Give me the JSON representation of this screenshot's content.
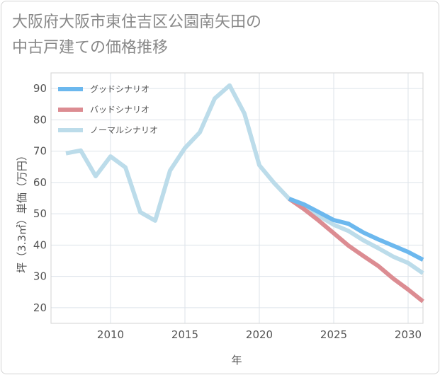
{
  "title": "大阪府大阪市東住吉区公園南矢田の\n中古戸建ての価格推移",
  "chart_data": {
    "type": "line",
    "xlabel": "年",
    "ylabel": "坪（3.3㎡）単価（万円）",
    "xlim": [
      2006,
      2031
    ],
    "ylim": [
      15,
      95
    ],
    "xticks": [
      2010,
      2015,
      2020,
      2025,
      2030
    ],
    "yticks": [
      20,
      30,
      40,
      50,
      60,
      70,
      80,
      90
    ],
    "grid": true,
    "legend_position": "top-left",
    "series": [
      {
        "name": "グッドシナリオ",
        "color": "#6cb8ee",
        "x": [
          2022,
          2023,
          2024,
          2025,
          2026,
          2027,
          2028,
          2029,
          2030,
          2031
        ],
        "y": [
          54.8,
          53.0,
          50.5,
          48.0,
          46.8,
          44.0,
          41.8,
          39.8,
          37.8,
          35.3
        ]
      },
      {
        "name": "バッドシナリオ",
        "color": "#dc8c92",
        "x": [
          2022,
          2023,
          2024,
          2025,
          2026,
          2027,
          2028,
          2029,
          2030,
          2031
        ],
        "y": [
          54.8,
          51.5,
          47.8,
          43.8,
          39.8,
          36.5,
          33.3,
          29.3,
          25.8,
          22.0
        ]
      },
      {
        "name": "ノーマルシナリオ",
        "color": "#bcdcea",
        "x": [
          2007,
          2008,
          2009,
          2010,
          2011,
          2012,
          2013,
          2014,
          2015,
          2016,
          2017,
          2018,
          2019,
          2020,
          2021,
          2022,
          2023,
          2024,
          2025,
          2026,
          2027,
          2028,
          2029,
          2030,
          2031
        ],
        "y": [
          69.3,
          70.2,
          62.0,
          68.3,
          64.8,
          50.5,
          47.8,
          63.8,
          71.0,
          76.0,
          86.8,
          91.0,
          82.0,
          65.5,
          59.8,
          54.8,
          52.0,
          49.3,
          46.5,
          44.5,
          41.5,
          39.0,
          36.3,
          34.3,
          31.0
        ]
      }
    ]
  }
}
